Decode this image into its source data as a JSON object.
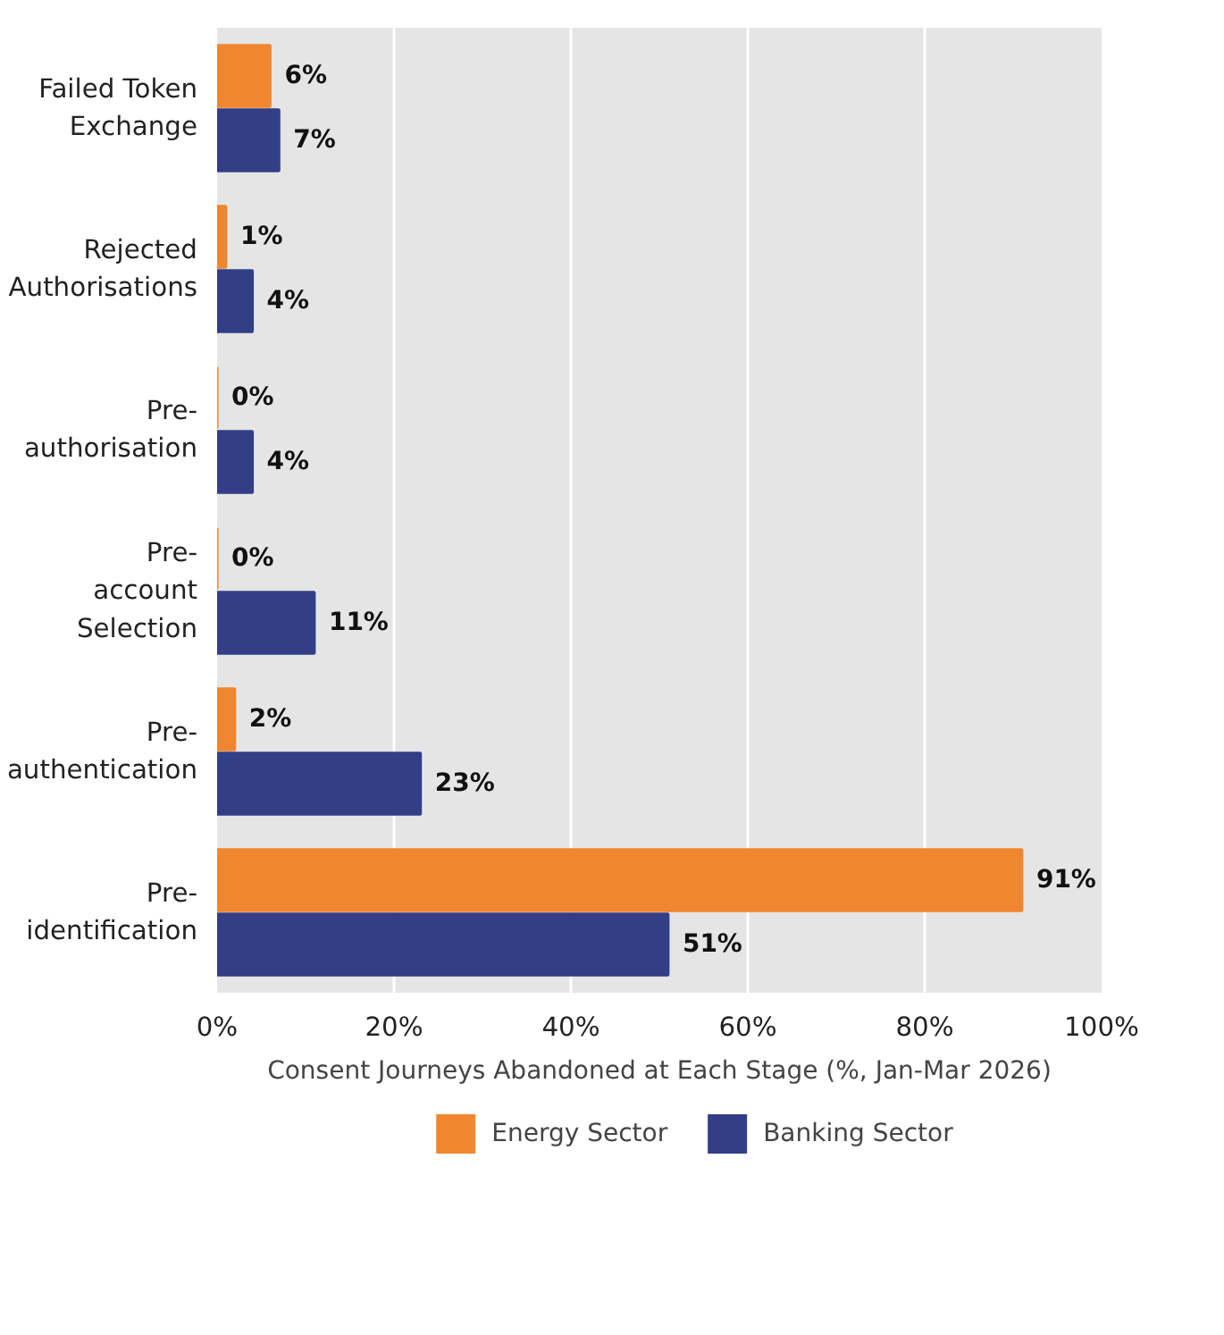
{
  "chart_data": {
    "type": "bar",
    "orientation": "horizontal",
    "categories": [
      "Failed Token\nExchange",
      "Rejected\nAuthorisations",
      "Pre-\nauthorisation",
      "Pre-\naccount\nSelection",
      "Pre-\nauthentication",
      "Pre-\nidentification"
    ],
    "series": [
      {
        "name": "Energy Sector",
        "color": "#f0862f",
        "values": [
          6,
          1,
          0,
          0,
          2,
          91
        ],
        "value_labels": [
          "6%",
          "1%",
          "0%",
          "0%",
          "2%",
          "91%"
        ]
      },
      {
        "name": "Banking Sector",
        "color": "#323f87",
        "values": [
          7,
          4,
          4,
          11,
          23,
          51
        ],
        "value_labels": [
          "7%",
          "4%",
          "4%",
          "11%",
          "23%",
          "51%"
        ]
      }
    ],
    "xlabel": "Consent Journeys Abandoned at Each Stage (%, Jan-Mar 2026)",
    "xlim": [
      0,
      100
    ],
    "xticks": [
      {
        "value": 0,
        "label": "0%"
      },
      {
        "value": 20,
        "label": "20%"
      },
      {
        "value": 40,
        "label": "40%"
      },
      {
        "value": 60,
        "label": "60%"
      },
      {
        "value": 80,
        "label": "80%"
      },
      {
        "value": 100,
        "label": "100%"
      }
    ],
    "grid": "x",
    "legend": "bottom"
  }
}
